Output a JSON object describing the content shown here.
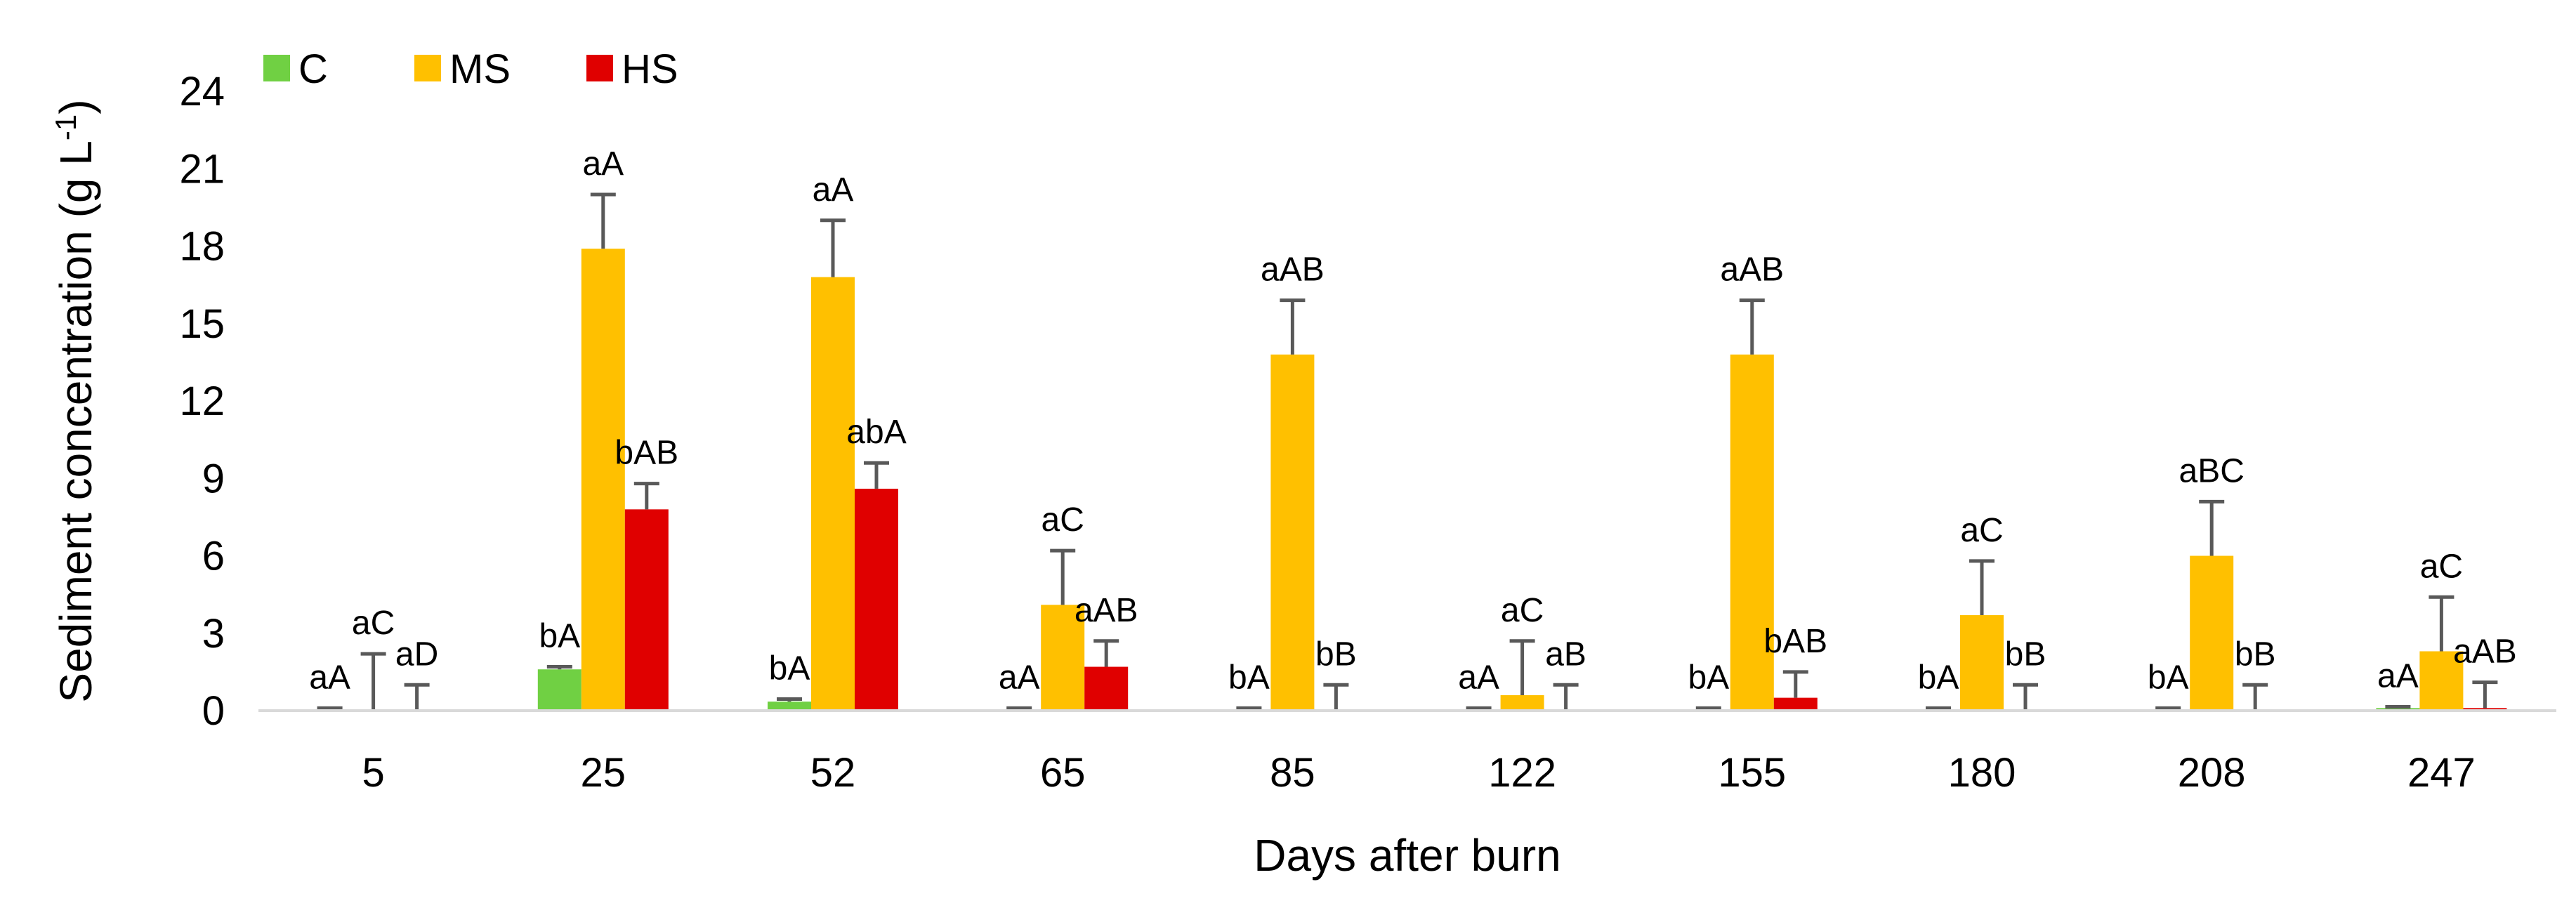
{
  "chart_data": {
    "type": "bar",
    "title": "",
    "xlabel": "Days after burn",
    "ylabel": "Sediment concentration (g L",
    "ylabel_superscript": "-1",
    "ylabel_suffix": ")",
    "ylim": [
      0,
      24
    ],
    "yticks": [
      0,
      3,
      6,
      9,
      12,
      15,
      18,
      21,
      24
    ],
    "grid": false,
    "legend_position": "top-left",
    "categories": [
      "5",
      "25",
      "52",
      "65",
      "85",
      "122",
      "155",
      "180",
      "208",
      "247"
    ],
    "series": [
      {
        "name": "C",
        "color": "#70d043",
        "values": [
          0.05,
          1.6,
          0.35,
          0.05,
          0.05,
          0.05,
          0.05,
          0.05,
          0.05,
          0.1
        ],
        "error": [
          0.05,
          0.1,
          0.1,
          0.05,
          0.05,
          0.05,
          0.05,
          0.05,
          0.05,
          0.05
        ],
        "labels": [
          "aA",
          "bA",
          "bA",
          "aA",
          "bA",
          "aA",
          "bA",
          "bA",
          "bA",
          "aA"
        ]
      },
      {
        "name": "MS",
        "color": "#ffc000",
        "values": [
          0,
          17.9,
          16.8,
          4.1,
          13.8,
          0.6,
          13.8,
          3.7,
          6.0,
          2.3
        ],
        "error": [
          2.2,
          2.1,
          2.2,
          2.1,
          2.1,
          2.1,
          2.1,
          2.1,
          2.1,
          2.1
        ],
        "labels": [
          "aC",
          "aA",
          "aA",
          "aC",
          "aAB",
          "aC",
          "aAB",
          "aC",
          "aBC",
          "aC"
        ]
      },
      {
        "name": "HS",
        "color": "#e00000",
        "values": [
          0,
          7.8,
          8.6,
          1.7,
          0,
          0,
          0.5,
          0,
          0,
          0.1
        ],
        "error": [
          1.0,
          1.0,
          1.0,
          1.0,
          1.0,
          1.0,
          1.0,
          1.0,
          1.0,
          1.0
        ],
        "labels": [
          "aD",
          "bAB",
          "abA",
          "aAB",
          "bB",
          "aB",
          "bAB",
          "bB",
          "bB",
          "aAB"
        ]
      }
    ]
  }
}
